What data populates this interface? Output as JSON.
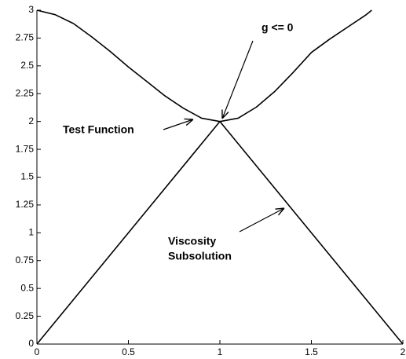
{
  "chart_data": {
    "type": "line",
    "series": [
      {
        "color": "#000000",
        "x": [
          0,
          0.1,
          0.2,
          0.3,
          0.4,
          0.5,
          0.6,
          0.7,
          0.8,
          0.9,
          1,
          1.1,
          1.2,
          1.3,
          1.4,
          1.5,
          1.6,
          1.7,
          1.8,
          1.83
        ],
        "values": [
          3,
          2.96,
          2.88,
          2.76,
          2.63,
          2.49,
          2.36,
          2.23,
          2.12,
          2.03,
          2,
          2.03,
          2.13,
          2.27,
          2.44,
          2.62,
          2.74,
          2.85,
          2.96,
          3
        ]
      },
      {
        "color": "#000000",
        "x": [
          0,
          1,
          2
        ],
        "values": [
          0,
          2,
          0
        ]
      }
    ],
    "annotations": [
      "g  <= 0",
      "Test Function",
      "Viscosity",
      "Subsolution"
    ],
    "xlim": [
      0,
      2
    ],
    "xticks": [
      0,
      0.5,
      1,
      1.5,
      2
    ],
    "ylim": [
      0,
      3
    ],
    "yticks": [
      0,
      0.25,
      0.5,
      0.75,
      1,
      1.25,
      1.5,
      1.75,
      2,
      2.25,
      2.5,
      2.75,
      3
    ],
    "grid": false
  }
}
